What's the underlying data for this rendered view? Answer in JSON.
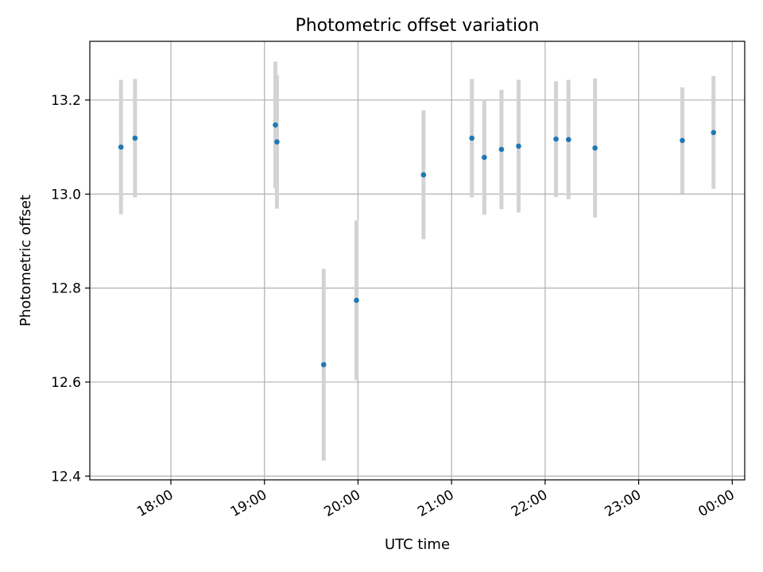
{
  "chart_data": {
    "type": "scatter",
    "title": "Photometric offset variation",
    "xlabel": "UTC time",
    "ylabel": "Photometric offset",
    "x_tick_labels": [
      "18:00",
      "19:00",
      "20:00",
      "21:00",
      "22:00",
      "23:00",
      "00:00"
    ],
    "y_tick_labels": [
      "12.4",
      "12.6",
      "12.8",
      "13.0",
      "13.2"
    ],
    "xlim": [
      "17:08",
      "00:08"
    ],
    "ylim": [
      12.392,
      13.325
    ],
    "grid": true,
    "colors": {
      "points": "#1f77b4",
      "errorbars": "#d3d3d3",
      "grid": "#b0b0b0"
    },
    "points": [
      {
        "x": "17:28",
        "y": 13.1,
        "err": 0.143
      },
      {
        "x": "17:37",
        "y": 13.119,
        "err": 0.126
      },
      {
        "x": "19:07",
        "y": 13.147,
        "err": 0.135
      },
      {
        "x": "19:08",
        "y": 13.111,
        "err": 0.142
      },
      {
        "x": "19:38",
        "y": 12.637,
        "err": 0.204
      },
      {
        "x": "19:59",
        "y": 12.774,
        "err": 0.17
      },
      {
        "x": "20:42",
        "y": 13.041,
        "err": 0.137
      },
      {
        "x": "21:13",
        "y": 13.119,
        "err": 0.126
      },
      {
        "x": "21:21",
        "y": 13.078,
        "err": 0.122
      },
      {
        "x": "21:32",
        "y": 13.095,
        "err": 0.127
      },
      {
        "x": "21:43",
        "y": 13.102,
        "err": 0.141
      },
      {
        "x": "22:07",
        "y": 13.117,
        "err": 0.123
      },
      {
        "x": "22:15",
        "y": 13.116,
        "err": 0.127
      },
      {
        "x": "22:32",
        "y": 13.098,
        "err": 0.148
      },
      {
        "x": "23:28",
        "y": 13.114,
        "err": 0.113
      },
      {
        "x": "23:48",
        "y": 13.131,
        "err": 0.12
      }
    ]
  }
}
